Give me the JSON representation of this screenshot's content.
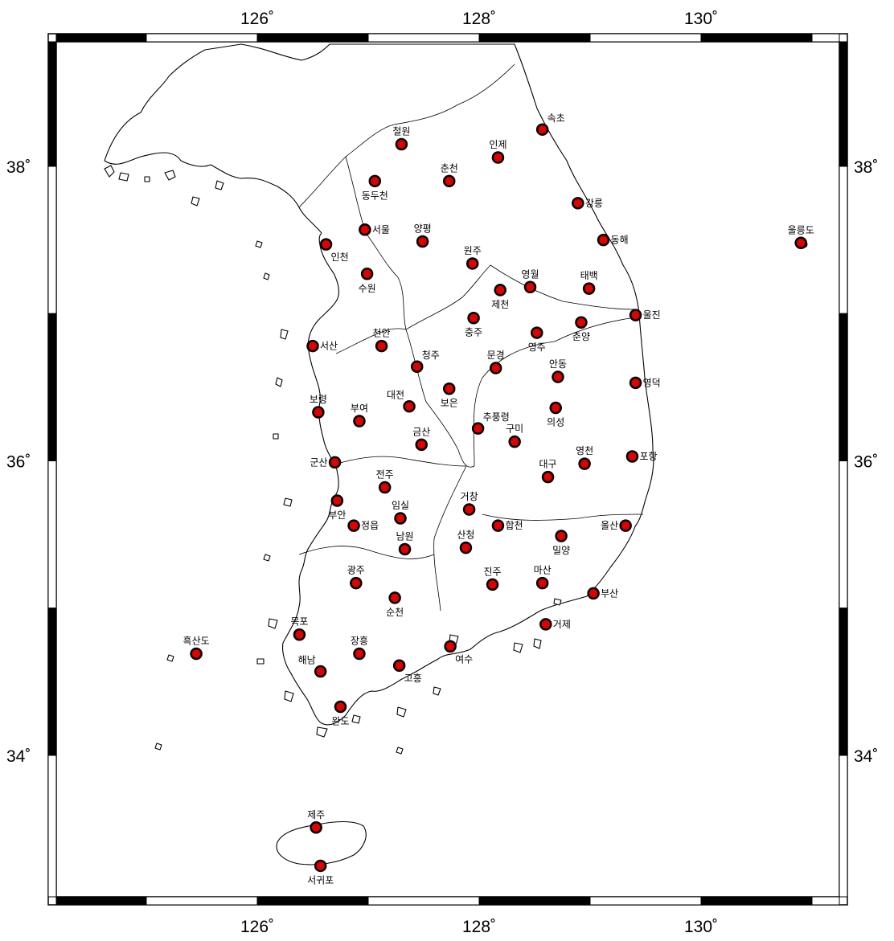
{
  "map": {
    "bounds": {
      "lon": [
        124.0,
        131.3
      ],
      "lat": [
        32.6,
        39.0
      ]
    },
    "lon_ticks": [
      {
        "value": 126,
        "label": "126˚"
      },
      {
        "value": 128,
        "label": "128˚"
      },
      {
        "value": 130,
        "label": "130˚"
      }
    ],
    "lat_ticks": [
      {
        "value": 38,
        "label": "38˚"
      },
      {
        "value": 36,
        "label": "36˚"
      },
      {
        "value": 34,
        "label": "34˚"
      }
    ],
    "marker_color": "#e00000",
    "marker_stroke": "#000000",
    "frame_color": "#000000",
    "stations": [
      {
        "name": "철원",
        "lon": 127.3,
        "lat": 38.15,
        "label_side": "top"
      },
      {
        "name": "동두천",
        "lon": 127.06,
        "lat": 37.9,
        "label_side": "bottom"
      },
      {
        "name": "춘천",
        "lon": 127.73,
        "lat": 37.9,
        "label_side": "top"
      },
      {
        "name": "인제",
        "lon": 128.17,
        "lat": 38.06,
        "label_side": "top"
      },
      {
        "name": "속초",
        "lon": 128.57,
        "lat": 38.25,
        "label_side": "top-right"
      },
      {
        "name": "강릉",
        "lon": 128.89,
        "lat": 37.75,
        "label_side": "right"
      },
      {
        "name": "동해",
        "lon": 129.12,
        "lat": 37.5,
        "label_side": "right"
      },
      {
        "name": "울릉도",
        "lon": 130.9,
        "lat": 37.48,
        "label_side": "top"
      },
      {
        "name": "인천",
        "lon": 126.62,
        "lat": 37.47,
        "label_side": "bottom-right"
      },
      {
        "name": "서울",
        "lon": 126.97,
        "lat": 37.57,
        "label_side": "right"
      },
      {
        "name": "양평",
        "lon": 127.49,
        "lat": 37.49,
        "label_side": "top"
      },
      {
        "name": "수원",
        "lon": 126.99,
        "lat": 37.27,
        "label_side": "bottom"
      },
      {
        "name": "원주",
        "lon": 127.94,
        "lat": 37.34,
        "label_side": "top"
      },
      {
        "name": "영월",
        "lon": 128.46,
        "lat": 37.18,
        "label_side": "top"
      },
      {
        "name": "태백",
        "lon": 128.99,
        "lat": 37.17,
        "label_side": "top"
      },
      {
        "name": "제천",
        "lon": 128.19,
        "lat": 37.16,
        "label_side": "bottom"
      },
      {
        "name": "충주",
        "lon": 127.95,
        "lat": 36.97,
        "label_side": "bottom"
      },
      {
        "name": "영주",
        "lon": 128.52,
        "lat": 36.87,
        "label_side": "bottom"
      },
      {
        "name": "춘양",
        "lon": 128.92,
        "lat": 36.94,
        "label_side": "bottom"
      },
      {
        "name": "울진",
        "lon": 129.41,
        "lat": 36.99,
        "label_side": "right"
      },
      {
        "name": "서산",
        "lon": 126.5,
        "lat": 36.78,
        "label_side": "right"
      },
      {
        "name": "천안",
        "lon": 127.12,
        "lat": 36.78,
        "label_side": "top"
      },
      {
        "name": "청주",
        "lon": 127.44,
        "lat": 36.64,
        "label_side": "top-right"
      },
      {
        "name": "문경",
        "lon": 128.15,
        "lat": 36.63,
        "label_side": "top"
      },
      {
        "name": "안동",
        "lon": 128.71,
        "lat": 36.57,
        "label_side": "top"
      },
      {
        "name": "영덕",
        "lon": 129.41,
        "lat": 36.53,
        "label_side": "right"
      },
      {
        "name": "보은",
        "lon": 127.73,
        "lat": 36.49,
        "label_side": "bottom"
      },
      {
        "name": "대전",
        "lon": 127.37,
        "lat": 36.37,
        "label_side": "top-left"
      },
      {
        "name": "추풍령",
        "lon": 127.99,
        "lat": 36.22,
        "label_side": "top-right"
      },
      {
        "name": "의성",
        "lon": 128.69,
        "lat": 36.36,
        "label_side": "bottom"
      },
      {
        "name": "구미",
        "lon": 128.32,
        "lat": 36.13,
        "label_side": "top"
      },
      {
        "name": "보령",
        "lon": 126.55,
        "lat": 36.33,
        "label_side": "top"
      },
      {
        "name": "부여",
        "lon": 126.92,
        "lat": 36.27,
        "label_side": "top"
      },
      {
        "name": "금산",
        "lon": 127.48,
        "lat": 36.11,
        "label_side": "top"
      },
      {
        "name": "영천",
        "lon": 128.95,
        "lat": 35.98,
        "label_side": "top"
      },
      {
        "name": "포항",
        "lon": 129.38,
        "lat": 36.03,
        "label_side": "right"
      },
      {
        "name": "군산",
        "lon": 126.7,
        "lat": 35.99,
        "label_side": "left"
      },
      {
        "name": "대구",
        "lon": 128.62,
        "lat": 35.89,
        "label_side": "top"
      },
      {
        "name": "전주",
        "lon": 127.15,
        "lat": 35.82,
        "label_side": "top"
      },
      {
        "name": "거창",
        "lon": 127.91,
        "lat": 35.67,
        "label_side": "top"
      },
      {
        "name": "부안",
        "lon": 126.72,
        "lat": 35.73,
        "label_side": "bottom"
      },
      {
        "name": "임실",
        "lon": 127.29,
        "lat": 35.61,
        "label_side": "top"
      },
      {
        "name": "합천",
        "lon": 128.17,
        "lat": 35.56,
        "label_side": "right"
      },
      {
        "name": "밀양",
        "lon": 128.74,
        "lat": 35.49,
        "label_side": "bottom"
      },
      {
        "name": "울산",
        "lon": 129.32,
        "lat": 35.56,
        "label_side": "left"
      },
      {
        "name": "정읍",
        "lon": 126.87,
        "lat": 35.56,
        "label_side": "right"
      },
      {
        "name": "남원",
        "lon": 127.33,
        "lat": 35.4,
        "label_side": "top"
      },
      {
        "name": "산청",
        "lon": 127.88,
        "lat": 35.41,
        "label_side": "top"
      },
      {
        "name": "진주",
        "lon": 128.12,
        "lat": 35.16,
        "label_side": "top"
      },
      {
        "name": "마산",
        "lon": 128.57,
        "lat": 35.17,
        "label_side": "top"
      },
      {
        "name": "부산",
        "lon": 129.03,
        "lat": 35.1,
        "label_side": "right"
      },
      {
        "name": "광주",
        "lon": 126.89,
        "lat": 35.17,
        "label_side": "top"
      },
      {
        "name": "순천",
        "lon": 127.24,
        "lat": 35.07,
        "label_side": "bottom"
      },
      {
        "name": "거제",
        "lon": 128.6,
        "lat": 34.89,
        "label_side": "right"
      },
      {
        "name": "목포",
        "lon": 126.38,
        "lat": 34.82,
        "label_side": "top"
      },
      {
        "name": "흑산도",
        "lon": 125.45,
        "lat": 34.69,
        "label_side": "top"
      },
      {
        "name": "장흥",
        "lon": 126.92,
        "lat": 34.69,
        "label_side": "top"
      },
      {
        "name": "여수",
        "lon": 127.74,
        "lat": 34.74,
        "label_side": "bottom-right"
      },
      {
        "name": "고흥",
        "lon": 127.28,
        "lat": 34.61,
        "label_side": "bottom-right"
      },
      {
        "name": "해남",
        "lon": 126.57,
        "lat": 34.57,
        "label_side": "top-left"
      },
      {
        "name": "완도",
        "lon": 126.75,
        "lat": 34.33,
        "label_side": "bottom"
      },
      {
        "name": "제주",
        "lon": 126.53,
        "lat": 33.51,
        "label_side": "top"
      },
      {
        "name": "서귀포",
        "lon": 126.57,
        "lat": 33.25,
        "label_side": "bottom"
      }
    ]
  }
}
